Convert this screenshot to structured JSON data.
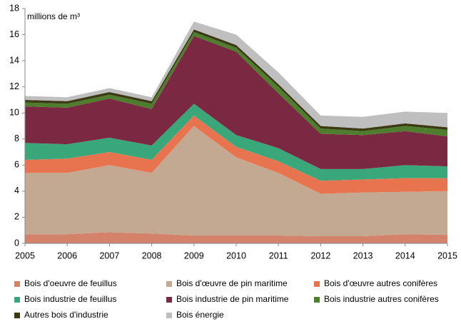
{
  "chart_data": {
    "type": "stacked_area",
    "annotation": "millions de m³",
    "x": [
      2005,
      2006,
      2007,
      2008,
      2009,
      2010,
      2011,
      2012,
      2013,
      2014,
      2015
    ],
    "xlim": [
      2005,
      2015
    ],
    "xticks": [
      2005,
      2006,
      2007,
      2008,
      2009,
      2010,
      2011,
      2012,
      2013,
      2014,
      2015
    ],
    "ylim": [
      0,
      18
    ],
    "yticks": [
      0,
      2,
      4,
      6,
      8,
      10,
      12,
      14,
      16,
      18
    ],
    "grid": false,
    "legend": "bottom",
    "series": [
      {
        "name": "Bois d'oeuvre de feuillus",
        "color": "#d4826a",
        "values": [
          0.7,
          0.7,
          0.85,
          0.75,
          0.6,
          0.6,
          0.6,
          0.55,
          0.55,
          0.7,
          0.65
        ]
      },
      {
        "name": "Bois d'œuvre de pin maritime",
        "color": "#c3a892",
        "values": [
          4.7,
          4.7,
          5.15,
          4.65,
          8.4,
          6.0,
          4.8,
          3.25,
          3.35,
          3.25,
          3.35
        ]
      },
      {
        "name": "Bois d'œuvre autres conifères",
        "color": "#e8734f",
        "values": [
          1.0,
          1.1,
          1.0,
          1.0,
          0.8,
          0.8,
          0.9,
          1.0,
          1.0,
          1.05,
          1.0
        ]
      },
      {
        "name": "Bois industrie de feuillus",
        "color": "#3aa77a",
        "values": [
          1.3,
          1.1,
          1.1,
          1.1,
          0.9,
          0.9,
          1.0,
          0.9,
          0.8,
          1.0,
          0.9
        ]
      },
      {
        "name": "Bois industrie de pin maritime",
        "color": "#7b2942",
        "values": [
          2.8,
          2.8,
          3.0,
          2.8,
          5.2,
          6.4,
          4.2,
          2.7,
          2.6,
          2.6,
          2.3
        ]
      },
      {
        "name": "Bois industrie autres conifères",
        "color": "#4e7d2e",
        "values": [
          0.3,
          0.3,
          0.3,
          0.4,
          0.3,
          0.3,
          0.5,
          0.4,
          0.3,
          0.4,
          0.5
        ]
      },
      {
        "name": "Autres bois d'industrie",
        "color": "#3b3a12",
        "values": [
          0.2,
          0.2,
          0.2,
          0.2,
          0.2,
          0.2,
          0.2,
          0.2,
          0.2,
          0.2,
          0.2
        ]
      },
      {
        "name": "Bois énergie",
        "color": "#bfbfbf",
        "values": [
          0.3,
          0.3,
          0.3,
          0.3,
          0.6,
          0.8,
          0.9,
          0.8,
          0.9,
          0.9,
          1.1
        ]
      }
    ]
  }
}
